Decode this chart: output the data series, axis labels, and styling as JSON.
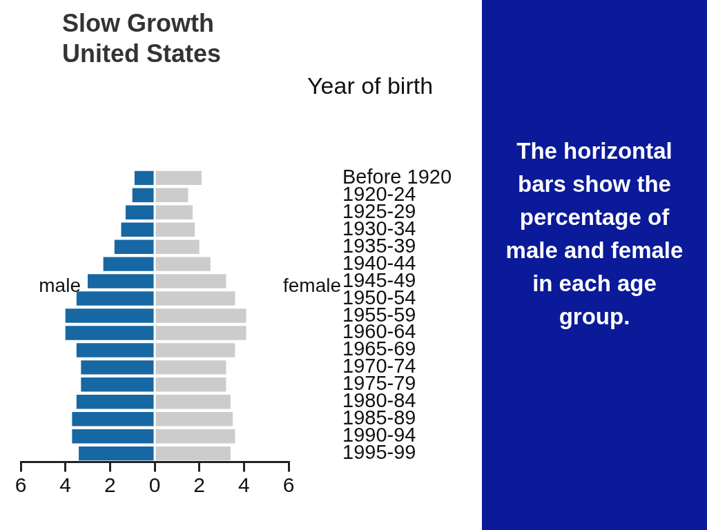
{
  "chart_data": {
    "type": "bar",
    "orientation": "horizontal",
    "stacked": true,
    "title": "Slow Growth United States",
    "ylabel": "Year of birth",
    "categories": [
      "Before 1920",
      "1920-24",
      "1925-29",
      "1930-34",
      "1935-39",
      "1940-44",
      "1945-49",
      "1950-54",
      "1955-59",
      "1960-64",
      "1965-69",
      "1970-74",
      "1975-79",
      "1980-84",
      "1985-89",
      "1990-94",
      "1995-99"
    ],
    "series": [
      {
        "name": "male",
        "color": "#1767a3",
        "values": [
          -0.9,
          -1.0,
          -1.3,
          -1.5,
          -1.8,
          -2.3,
          -3.0,
          -3.5,
          -4.0,
          -4.0,
          -3.5,
          -3.3,
          -3.3,
          -3.5,
          -3.7,
          -3.7,
          -3.4
        ]
      },
      {
        "name": "female",
        "color": "#cccccc",
        "values": [
          2.1,
          1.5,
          1.7,
          1.8,
          2.0,
          2.5,
          3.2,
          3.6,
          4.1,
          4.1,
          3.6,
          3.2,
          3.2,
          3.4,
          3.5,
          3.6,
          3.4
        ]
      }
    ],
    "xlim": [
      -6,
      6
    ],
    "xticks": [
      {
        "value": -6,
        "label": "6"
      },
      {
        "value": -4,
        "label": "4"
      },
      {
        "value": -2,
        "label": "2"
      },
      0,
      2,
      4,
      6
    ],
    "grid": false,
    "legend": false,
    "annotations": [
      "The horizontal bars show the percentage of male and female in each age group."
    ]
  }
}
